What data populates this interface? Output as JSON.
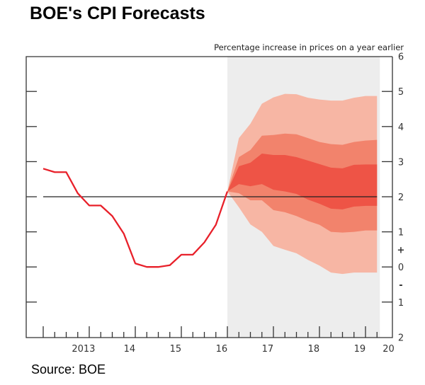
{
  "chart_data": {
    "type": "area",
    "title": "BOE's CPI Forecasts",
    "subtitle": "Percentage increase in prices on a year earlier",
    "source": "Source: BOE",
    "xlabel": "",
    "ylabel": "",
    "ylim": [
      -2,
      6
    ],
    "xlim": [
      2012.625,
      2020.625
    ],
    "x_tick_labels": [
      {
        "label": "2013",
        "x": 2013.5
      },
      {
        "label": "14",
        "x": 2014.5
      },
      {
        "label": "15",
        "x": 2015.5
      },
      {
        "label": "16",
        "x": 2016.5
      },
      {
        "label": "17",
        "x": 2017.5
      },
      {
        "label": "18",
        "x": 2018.5
      },
      {
        "label": "19",
        "x": 2019.5
      },
      {
        "label": "20",
        "x": 2020.125
      }
    ],
    "y_tick_labels": [
      {
        "label": "6",
        "y": 6
      },
      {
        "label": "5",
        "y": 5
      },
      {
        "label": "4",
        "y": 4
      },
      {
        "label": "3",
        "y": 3
      },
      {
        "label": "2",
        "y": 2
      },
      {
        "label": "1",
        "y": 1
      },
      {
        "label": "+",
        "y": 0.5
      },
      {
        "label": "0",
        "y": 0
      },
      {
        "label": "-",
        "y": -0.5
      },
      {
        "label": "1",
        "y": -1
      },
      {
        "label": "2",
        "y": -2
      }
    ],
    "target_line": 2,
    "forecast_shading_start": 2016.625,
    "forecast_shading_end": 2019.875,
    "history": {
      "name": "CPI",
      "color": "#e8202a",
      "x": [
        2012.625,
        2012.875,
        2013.125,
        2013.375,
        2013.625,
        2013.875,
        2014.125,
        2014.375,
        2014.625,
        2014.875,
        2015.125,
        2015.375,
        2015.625,
        2015.875,
        2016.125,
        2016.375,
        2016.625
      ],
      "values": [
        2.8,
        2.7,
        2.7,
        2.1,
        1.75,
        1.75,
        1.45,
        0.95,
        0.1,
        0.0,
        0.0,
        0.05,
        0.35,
        0.35,
        0.7,
        1.2,
        2.15
      ]
    },
    "fan": {
      "x": [
        2016.625,
        2016.875,
        2017.125,
        2017.375,
        2017.625,
        2017.875,
        2018.125,
        2018.375,
        2018.625,
        2018.875,
        2019.125,
        2019.375,
        2019.625,
        2019.875
      ],
      "bands": [
        {
          "name": "outer",
          "color": "#f7b6a4",
          "upper": [
            2.15,
            3.67,
            4.08,
            4.65,
            4.83,
            4.93,
            4.92,
            4.82,
            4.77,
            4.74,
            4.74,
            4.82,
            4.87,
            4.87
          ],
          "lower": [
            2.15,
            1.7,
            1.21,
            1.0,
            0.6,
            0.49,
            0.39,
            0.2,
            0.04,
            -0.16,
            -0.2,
            -0.16,
            -0.16,
            -0.16
          ]
        },
        {
          "name": "middle",
          "color": "#f2836c",
          "upper": [
            2.15,
            3.13,
            3.33,
            3.74,
            3.76,
            3.8,
            3.78,
            3.67,
            3.56,
            3.5,
            3.48,
            3.56,
            3.6,
            3.62
          ],
          "lower": [
            2.15,
            2.1,
            1.9,
            1.9,
            1.62,
            1.56,
            1.45,
            1.31,
            1.2,
            1.0,
            0.98,
            1.0,
            1.04,
            1.04
          ]
        },
        {
          "name": "inner",
          "color": "#ee5446",
          "upper": [
            2.15,
            2.87,
            2.97,
            3.23,
            3.19,
            3.19,
            3.13,
            3.03,
            2.93,
            2.83,
            2.81,
            2.91,
            2.92,
            2.92
          ],
          "lower": [
            2.15,
            2.36,
            2.3,
            2.36,
            2.2,
            2.15,
            2.08,
            1.92,
            1.8,
            1.66,
            1.64,
            1.72,
            1.74,
            1.74
          ]
        }
      ]
    }
  }
}
